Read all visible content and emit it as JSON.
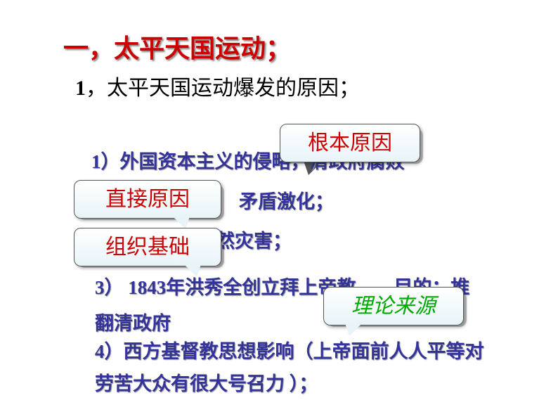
{
  "title": "一，太平天国运动；",
  "subtitle_num": "1",
  "subtitle_text": "，太平天国运动爆发的原因；",
  "point1": "1）外国资本主义的侵略，清政府腐败",
  "point2_cont": "矛盾激化；",
  "point2b": "自然灾害；",
  "point3": "3） 1843年洪秀全创立拜上帝教——目的：推翻清政府",
  "point4": "4）西方基督教思想影响（上帝面前人人平等对劳苦大众有很大号召力 ）；",
  "callouts": {
    "root_cause": "根本原因",
    "direct_cause": "直接原因",
    "org_basis": "组织基础",
    "theory_source": "理论来源"
  },
  "colors": {
    "title_red": "#cc0000",
    "body_blue": "#333399",
    "green_italic": "#00aa00",
    "background": "#ffffff",
    "callout_bg_top": "#ffffff",
    "callout_bg_bottom": "#e8f4f8",
    "callout_border": "#555555"
  },
  "fonts": {
    "title_size": 36,
    "subtitle_size": 30,
    "body_size": 27,
    "callout_size": 30
  }
}
